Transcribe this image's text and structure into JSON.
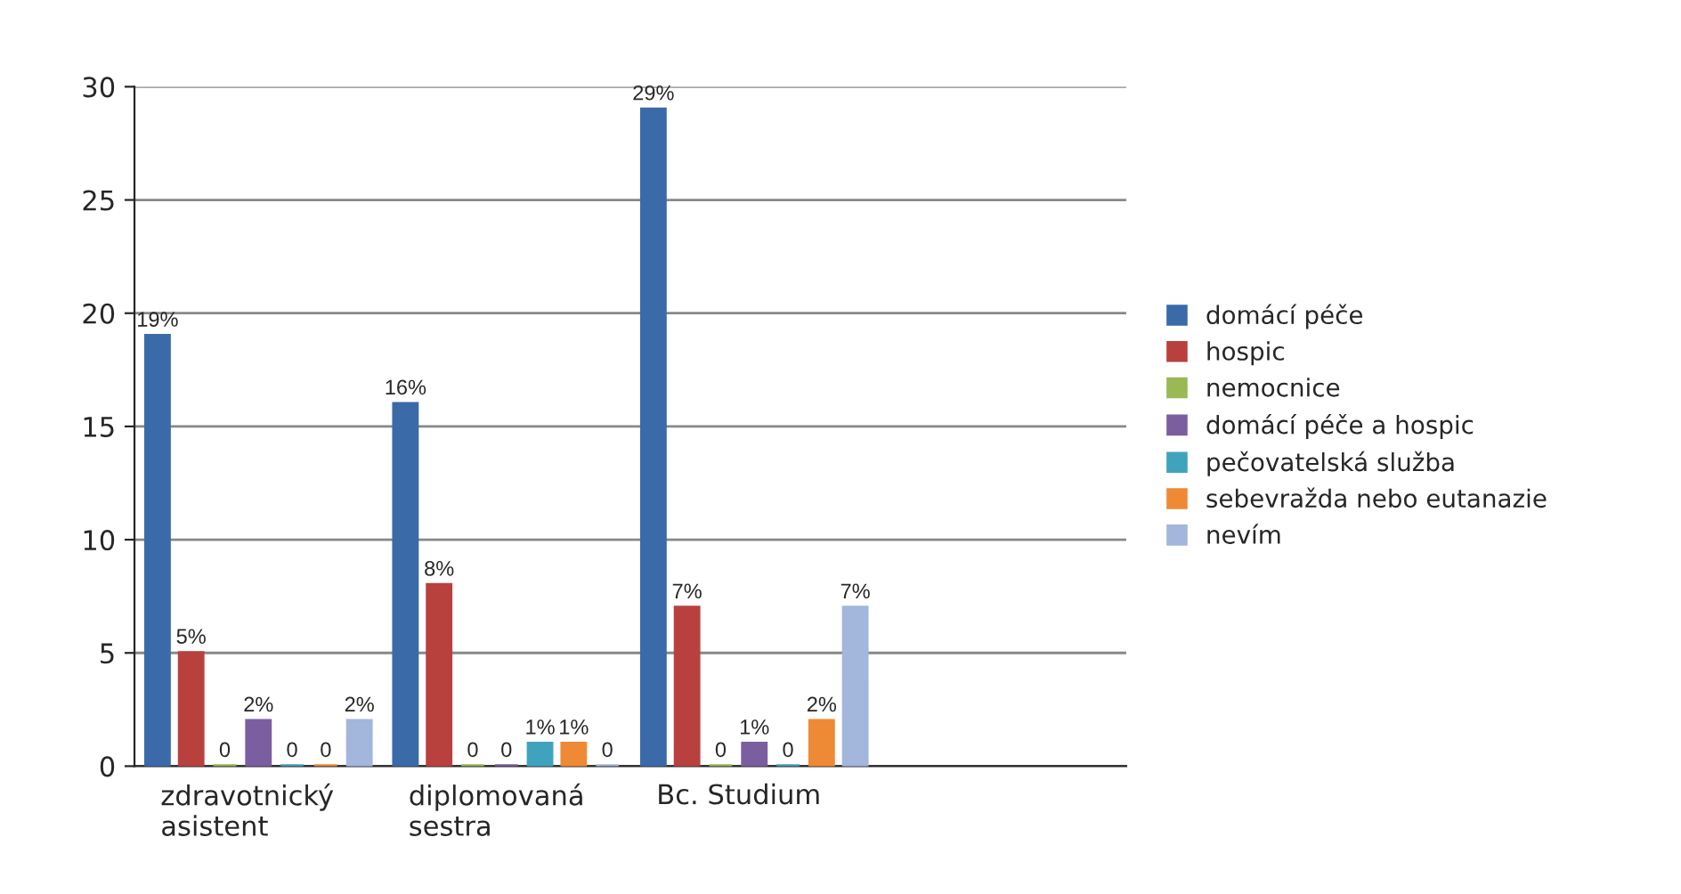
{
  "chart_data": {
    "type": "bar",
    "categories": [
      "zdravotnický asistent",
      "diplomovaná sestra",
      "Bc. Studium",
      null
    ],
    "series": [
      {
        "name": "domácí péče",
        "color": "#3a6aa8",
        "values": [
          19,
          16,
          29,
          null
        ],
        "value_labels": [
          "19%",
          "16%",
          "29%",
          null
        ]
      },
      {
        "name": "hospic",
        "color": "#b8413e",
        "values": [
          5,
          8,
          7,
          null
        ],
        "value_labels": [
          "5%",
          "8%",
          "7%",
          null
        ]
      },
      {
        "name": "nemocnice",
        "color": "#98b954",
        "values": [
          0,
          0,
          0,
          null
        ],
        "value_labels": [
          "0",
          "0",
          "0",
          null
        ]
      },
      {
        "name": "domácí péče a hospic",
        "color": "#7b5ea0",
        "values": [
          2,
          0,
          1,
          null
        ],
        "value_labels": [
          "2%",
          "0",
          "1%",
          null
        ]
      },
      {
        "name": "pečovatelská služba",
        "color": "#3fa3bd",
        "values": [
          0,
          1,
          0,
          null
        ],
        "value_labels": [
          "0",
          "1%",
          "0",
          null
        ]
      },
      {
        "name": "sebevražda nebo eutanazie",
        "color": "#ee8a35",
        "values": [
          0,
          1,
          2,
          null
        ],
        "value_labels": [
          "0",
          "1%",
          "2%",
          null
        ]
      },
      {
        "name": "nevím",
        "color": "#a3b6dc",
        "values": [
          2,
          0,
          7,
          null
        ],
        "value_labels": [
          "2%",
          "0",
          "7%",
          null
        ]
      }
    ],
    "ylim": [
      0,
      30
    ],
    "yticks": [
      0,
      5,
      10,
      15,
      20,
      25,
      30
    ],
    "grid": "y",
    "legend": "right"
  }
}
